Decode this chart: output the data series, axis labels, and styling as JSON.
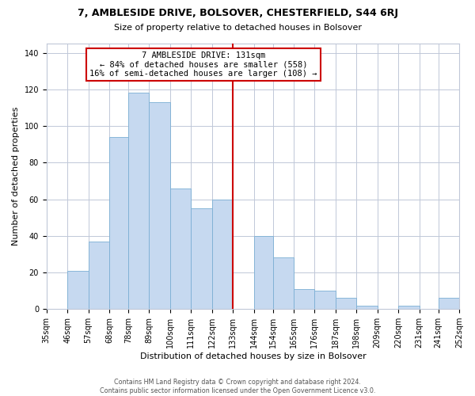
{
  "title": "7, AMBLESIDE DRIVE, BOLSOVER, CHESTERFIELD, S44 6RJ",
  "subtitle": "Size of property relative to detached houses in Bolsover",
  "xlabel": "Distribution of detached houses by size in Bolsover",
  "ylabel": "Number of detached properties",
  "bar_lefts": [
    35,
    46,
    57,
    68,
    78,
    89,
    100,
    111,
    122,
    133,
    144,
    154,
    165,
    176,
    187,
    198,
    209,
    220,
    231,
    241
  ],
  "bar_widths": [
    11,
    11,
    11,
    10,
    11,
    11,
    11,
    11,
    11,
    11,
    10,
    11,
    11,
    11,
    11,
    11,
    11,
    11,
    10,
    11
  ],
  "bar_heights": [
    0,
    21,
    37,
    94,
    118,
    113,
    66,
    55,
    60,
    0,
    40,
    28,
    11,
    10,
    6,
    2,
    0,
    2,
    0,
    6
  ],
  "bar_color": "#c6d9f0",
  "bar_edgecolor": "#7bafd4",
  "vline_x": 133,
  "vline_color": "#cc0000",
  "ylim": [
    0,
    145
  ],
  "yticks": [
    0,
    20,
    40,
    60,
    80,
    100,
    120,
    140
  ],
  "xlim": [
    35,
    252
  ],
  "annotation_title": "7 AMBLESIDE DRIVE: 131sqm",
  "annotation_line1": "← 84% of detached houses are smaller (558)",
  "annotation_line2": "16% of semi-detached houses are larger (108) →",
  "footer_line1": "Contains HM Land Registry data © Crown copyright and database right 2024.",
  "footer_line2": "Contains public sector information licensed under the Open Government Licence v3.0.",
  "tick_labels": [
    "35sqm",
    "46sqm",
    "57sqm",
    "68sqm",
    "78sqm",
    "89sqm",
    "100sqm",
    "111sqm",
    "122sqm",
    "133sqm",
    "144sqm",
    "154sqm",
    "165sqm",
    "176sqm",
    "187sqm",
    "198sqm",
    "209sqm",
    "220sqm",
    "231sqm",
    "241sqm",
    "252sqm"
  ],
  "tick_positions": [
    35,
    46,
    57,
    68,
    78,
    89,
    100,
    111,
    122,
    133,
    144,
    154,
    165,
    176,
    187,
    198,
    209,
    220,
    231,
    241,
    252
  ],
  "background_color": "#ffffff",
  "grid_color": "#c0c8d8",
  "title_fontsize": 9,
  "subtitle_fontsize": 8,
  "axis_fontsize": 8,
  "tick_fontsize": 7
}
